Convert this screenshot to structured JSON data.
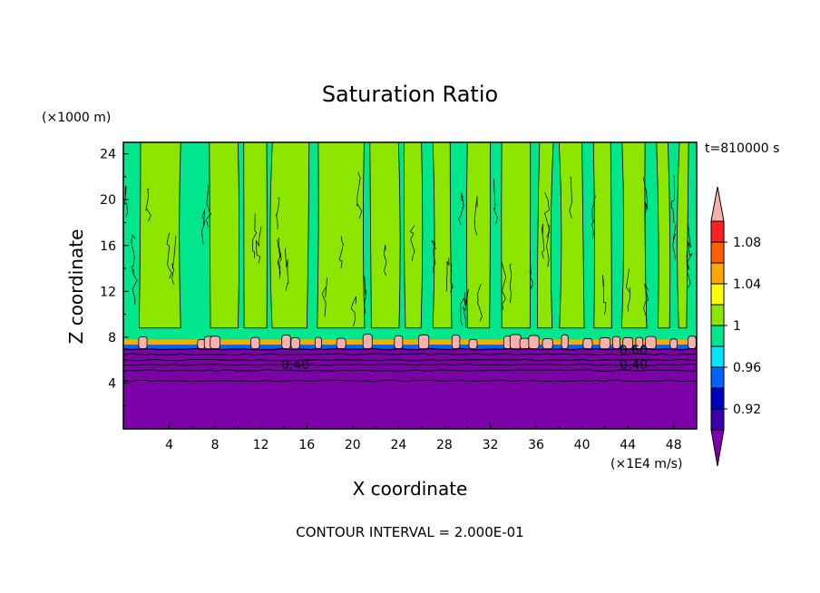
{
  "chart_data": {
    "type": "heatmap",
    "title": "Saturation Ratio",
    "xlabel": "X coordinate",
    "ylabel": "Z coordinate",
    "x_unit": "(×1E4 m/s)",
    "y_unit": "(×1000 m)",
    "time_label": "t=810000 s",
    "footer": "CONTOUR INTERVAL = 2.000E-01",
    "xlim": [
      0,
      50
    ],
    "ylim": [
      0,
      25
    ],
    "x_ticks": [
      4,
      8,
      12,
      16,
      20,
      24,
      28,
      32,
      36,
      40,
      44,
      48
    ],
    "y_ticks": [
      4,
      8,
      12,
      16,
      20,
      24
    ],
    "contour_labels": [
      {
        "text": "0.40",
        "x": 15.0,
        "y": 5.6
      },
      {
        "text": "0.40",
        "x": 44.5,
        "y": 5.6
      },
      {
        "text": "0.60",
        "x": 44.5,
        "y": 6.9
      }
    ],
    "colorbar": {
      "labels": [
        "1.08",
        "1.04",
        "1",
        "0.96",
        "0.92"
      ],
      "levels": [
        0.92,
        0.94,
        0.96,
        0.98,
        1.0,
        1.02,
        1.04,
        1.06,
        1.08,
        1.1
      ],
      "colors": [
        "#7b00a8",
        "#3a00b0",
        "#0000c0",
        "#0064ff",
        "#00e6ff",
        "#00e68c",
        "#8ce600",
        "#ffff00",
        "#ffaa00",
        "#ff6000",
        "#ff2020",
        "#f5b0b0"
      ]
    },
    "regions": {
      "dry_layer_top": 7.0,
      "dry_color": "#7b00a8",
      "subsaturated_color": "#00e68c",
      "supersaturated_color": "#8ce600",
      "cap_color": "#f5b0b0",
      "cap_band": [
        7.0,
        8.8
      ],
      "supersaturated_columns": [
        [
          1.5,
          5.0
        ],
        [
          7.5,
          10.0
        ],
        [
          10.5,
          12.5
        ],
        [
          13.0,
          16.2
        ],
        [
          17.0,
          21.0
        ],
        [
          21.5,
          24.0
        ],
        [
          24.5,
          26.0
        ],
        [
          27.0,
          28.5
        ],
        [
          30.0,
          32.0
        ],
        [
          33.0,
          35.5
        ],
        [
          36.3,
          37.5
        ],
        [
          38.0,
          40.0
        ],
        [
          41.0,
          42.5
        ],
        [
          43.5,
          45.5
        ],
        [
          46.5,
          47.5
        ],
        [
          48.5,
          49.3
        ]
      ],
      "cap_centers": [
        1.7,
        6.8,
        7.5,
        8.0,
        11.5,
        14.2,
        15.0,
        17.0,
        19.0,
        21.3,
        24.0,
        26.2,
        29.0,
        30.5,
        33.5,
        34.2,
        35.0,
        35.8,
        37.0,
        38.5,
        40.5,
        42.0,
        43.0,
        44.0,
        45.0,
        46.0,
        48.0,
        49.6
      ]
    }
  }
}
